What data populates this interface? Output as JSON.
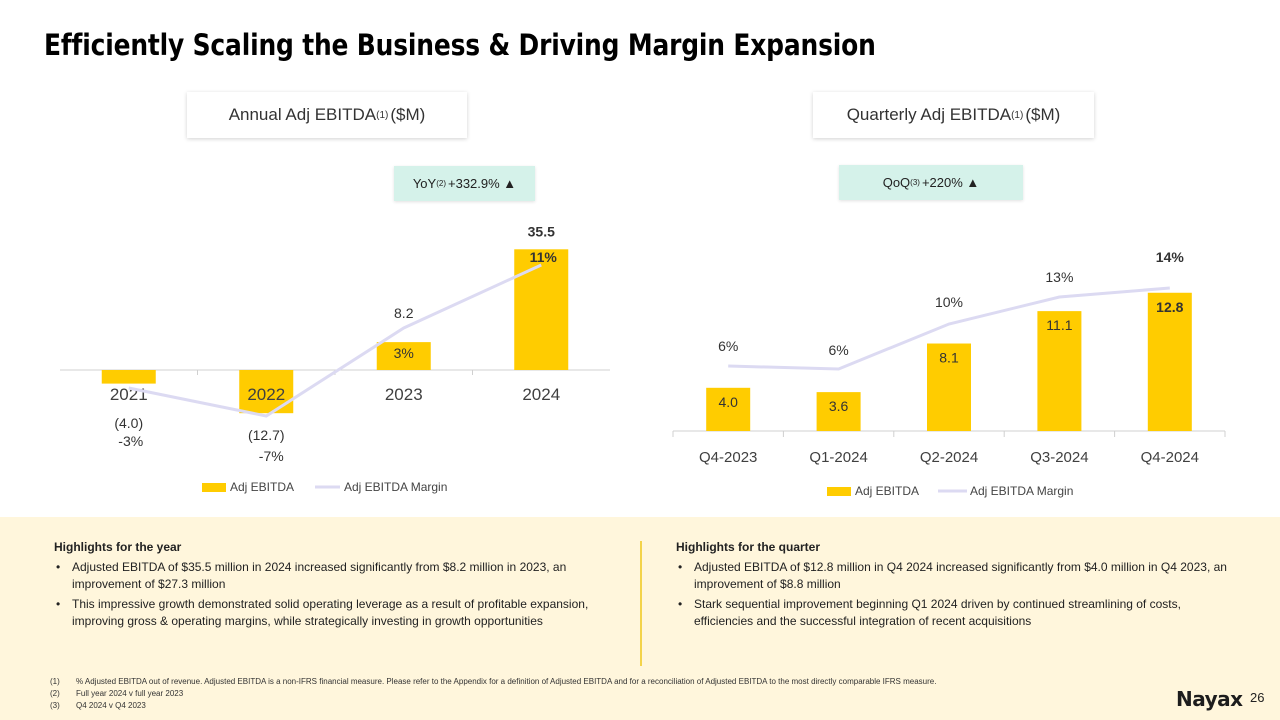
{
  "page": {
    "title": "Efficiently Scaling the Business & Driving Margin Expansion",
    "page_number": "26",
    "logo": "Nayax"
  },
  "annual": {
    "card_title_main": "Annual Adj EBITDA",
    "card_title_sup": "(1)",
    "card_title_unit": " ($M)",
    "badge_prefix": "YoY",
    "badge_sup": "(2)",
    "badge_value": " +332.9% ▲"
  },
  "quarterly": {
    "card_title_main": "Quarterly Adj EBITDA ",
    "card_title_sup": "(1)",
    "card_title_unit": " ($M)",
    "badge_prefix": "QoQ",
    "badge_sup": "(3)",
    "badge_value": " +220% ▲"
  },
  "colors": {
    "bar": "#ffcc00",
    "line": "#dcdaf2",
    "badge_bg": "#d5f2ea",
    "bottom_bg": "#fff6dc",
    "divider": "#f3d34a"
  },
  "chart_data": [
    {
      "type": "bar",
      "title": "Annual Adj EBITDA (1) ($M)",
      "categories": [
        "2021",
        "2022",
        "2023",
        "2024"
      ],
      "series": [
        {
          "name": "Adj EBITDA",
          "type": "bar",
          "values": [
            -4.0,
            -12.7,
            8.2,
            35.5
          ],
          "labels": [
            "(4.0)",
            "(12.7)",
            "8.2",
            "35.5"
          ]
        },
        {
          "name": "Adj EBITDA Margin",
          "type": "line",
          "values": [
            -3,
            -7,
            3,
            11
          ],
          "labels": [
            "-3%",
            "-7%",
            "3%",
            "11%"
          ],
          "unit": "%"
        }
      ],
      "legend": [
        "Adj EBITDA",
        "Adj EBITDA Margin"
      ],
      "legend_position": "bottom",
      "ylim": [
        -15,
        40
      ],
      "grid": false
    },
    {
      "type": "bar",
      "title": "Quarterly Adj EBITDA (1) ($M)",
      "categories": [
        "Q4-2023",
        "Q1-2024",
        "Q2-2024",
        "Q3-2024",
        "Q4-2024"
      ],
      "series": [
        {
          "name": "Adj EBITDA",
          "type": "bar",
          "values": [
            4.0,
            3.6,
            8.1,
            11.1,
            12.8
          ],
          "labels": [
            "4.0",
            "3.6",
            "8.1",
            "11.1",
            "12.8"
          ]
        },
        {
          "name": "Adj EBITDA Margin",
          "type": "line",
          "values": [
            6,
            6,
            10,
            13,
            14
          ],
          "labels": [
            "6%",
            "6%",
            "10%",
            "13%",
            "14%"
          ],
          "unit": "%"
        }
      ],
      "legend": [
        "Adj EBITDA",
        "Adj EBITDA Margin"
      ],
      "legend_position": "bottom",
      "ylim": [
        0,
        16
      ],
      "grid": false
    }
  ],
  "highlights_year": {
    "heading": "Highlights for the year",
    "bullets": [
      "Adjusted EBITDA of $35.5 million in 2024 increased significantly from $8.2 million in 2023, an improvement of $27.3 million",
      "This impressive growth demonstrated solid operating leverage as a result of profitable expansion, improving gross & operating margins, while strategically investing in growth opportunities"
    ]
  },
  "highlights_quarter": {
    "heading": "Highlights for the quarter",
    "bullets": [
      "Adjusted EBITDA of $12.8 million in Q4 2024 increased significantly from $4.0 million in Q4 2023, an improvement of $8.8 million",
      "Stark sequential improvement beginning Q1 2024 driven by continued streamlining of costs, efficiencies and the successful integration of recent acquisitions"
    ]
  },
  "footnotes": [
    {
      "num": "(1)",
      "text": "% Adjusted EBITDA out of revenue. Adjusted EBITDA is a non-IFRS financial measure. Please refer to the Appendix for a definition of Adjusted EBITDA and for a reconciliation of Adjusted EBITDA to the most directly comparable IFRS measure."
    },
    {
      "num": "(2)",
      "text": "Full year 2024 v full year 2023"
    },
    {
      "num": "(3)",
      "text": "Q4 2024 v Q4 2023"
    }
  ]
}
